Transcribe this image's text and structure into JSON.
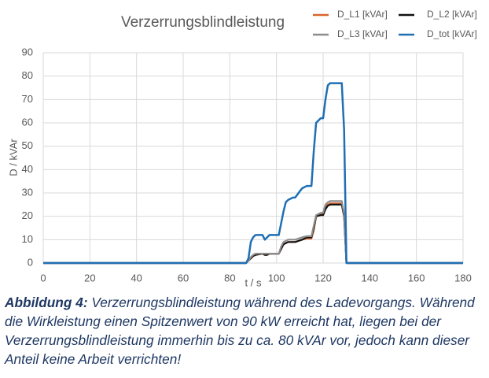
{
  "chart_data": {
    "type": "line",
    "title": "Verzerrungsblindleistung",
    "xlabel": "t / s",
    "ylabel": "D / kVAr",
    "x": [
      0,
      87,
      88,
      89,
      90,
      91,
      94,
      95,
      96,
      97,
      101,
      102,
      103,
      104,
      105,
      107,
      108,
      111,
      113,
      115,
      116,
      117,
      119,
      120,
      121,
      122,
      123,
      128,
      129,
      130,
      180
    ],
    "series": [
      {
        "name": "D_L1 [kVAr]",
        "color": "#d9652b",
        "values": [
          0,
          0,
          1,
          2,
          3,
          3.5,
          4,
          3.5,
          3.5,
          4,
          4,
          6,
          8,
          8.5,
          9,
          9,
          9,
          10,
          10.5,
          10.5,
          14,
          20,
          21,
          21,
          24,
          25,
          25.5,
          25.5,
          20,
          0,
          0
        ]
      },
      {
        "name": "D_L2 [kVAr]",
        "color": "#111111",
        "values": [
          0,
          0,
          1,
          2,
          3,
          3.5,
          4,
          3.5,
          3.5,
          4,
          4,
          6,
          8,
          8.5,
          9,
          9,
          9,
          10,
          11,
          11,
          15,
          20,
          20.5,
          20.5,
          23,
          24.5,
          25,
          25,
          20,
          0,
          0
        ]
      },
      {
        "name": "D_L3 [kVAr]",
        "color": "#8c8c8c",
        "values": [
          0,
          0,
          1,
          2.5,
          3.5,
          4,
          4,
          4,
          4,
          4,
          4,
          7,
          9,
          9.5,
          10,
          10,
          10,
          11,
          11.5,
          11.5,
          16,
          20.5,
          21.5,
          21.5,
          25,
          26,
          26.5,
          26.5,
          21,
          0,
          0
        ]
      },
      {
        "name": "D_tot [kVAr]",
        "color": "#1f6fb4",
        "values": [
          0,
          0,
          2,
          9,
          11,
          12,
          12,
          10,
          11,
          12,
          12,
          17,
          22,
          26,
          27,
          28,
          28,
          32,
          33,
          33,
          48,
          60,
          62,
          62,
          70,
          76,
          77,
          77,
          57,
          0,
          0
        ]
      }
    ],
    "xlim": [
      0,
      180
    ],
    "xticks": [
      0,
      20,
      40,
      60,
      80,
      100,
      120,
      140,
      160,
      180
    ],
    "ylim": [
      0,
      90
    ],
    "yticks": [
      0,
      10,
      20,
      30,
      40,
      50,
      60,
      70,
      80,
      90
    ],
    "grid": true
  },
  "caption": {
    "label": "Abbildung 4:",
    "text": "Verzerrungsblindleistung während des Ladevorgangs. Während die Wirkleistung einen Spitzenwert von 90 kW erreicht hat, liegen bei der Verzerrungsblindleistung immerhin bis zu ca. 80 kVAr vor, jedoch kann dieser Anteil keine Arbeit verrichten!"
  }
}
